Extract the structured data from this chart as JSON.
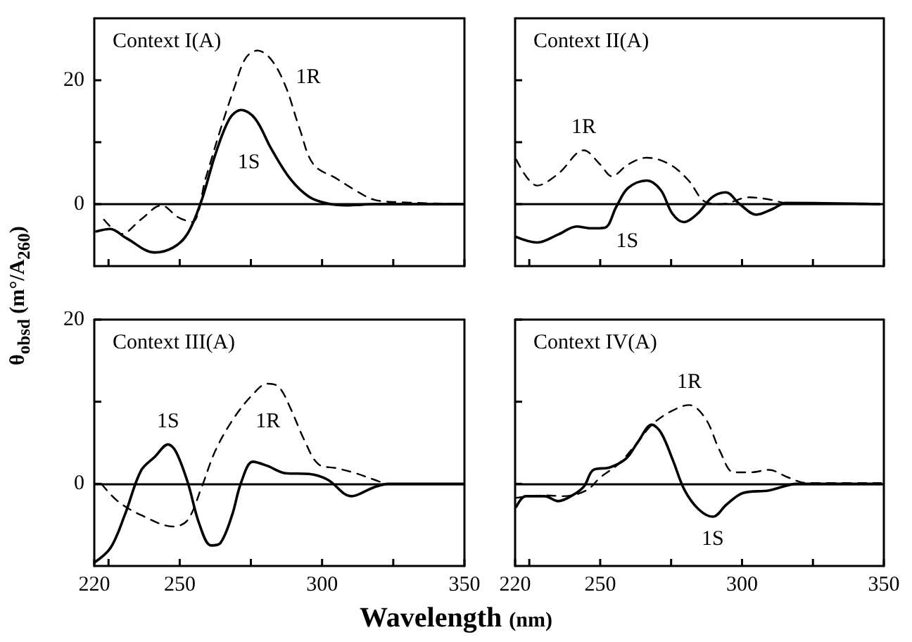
{
  "chart_data": [
    {
      "type": "line",
      "title": "Context I(A)",
      "ylabel": "θ$_{obsd}$ (m°/A$_{260}$)",
      "xlim": [
        220,
        350
      ],
      "ylim": [
        -10,
        30
      ],
      "xticks": [
        225,
        250,
        275,
        300,
        325,
        350
      ],
      "yticks": [
        0,
        {
          "value": 10,
          "label": null
        },
        20
      ],
      "tick_labels": "y",
      "grid": false,
      "legend": false,
      "series": [
        {
          "name": "1S",
          "color": "#000000",
          "line_style": "solid",
          "x": [
            220.7,
            225.6,
            231.3,
            241.2,
            247.7,
            252.7,
            257.6,
            262.5,
            267.5,
            271.6,
            276.5,
            282.2,
            288.8,
            295.4,
            301.9,
            308.5,
            318.4,
            349.6
          ],
          "values": [
            -4.4,
            -4,
            -5.5,
            -7.8,
            -7,
            -4.8,
            0.5,
            8,
            13.8,
            15.2,
            13.8,
            8.9,
            4.1,
            1.2,
            0.1,
            -0.2,
            0,
            0
          ]
        },
        {
          "name": "1R",
          "color": "#000000",
          "line_style": "dashed",
          "x": [
            223.4,
            229.7,
            236.3,
            243.6,
            249.4,
            254.3,
            259.2,
            264.2,
            269.1,
            273.2,
            277.3,
            282.2,
            287.2,
            292.1,
            297,
            305.2,
            311.8,
            318.4,
            328.2,
            349.6
          ],
          "values": [
            -2.5,
            -4.8,
            -2.5,
            -0.2,
            -2.1,
            -2.9,
            4.3,
            11.9,
            18.7,
            23.6,
            24.8,
            23.3,
            19,
            12.2,
            6.4,
            4.1,
            2.2,
            0.7,
            0.3,
            0
          ]
        }
      ],
      "ref_lines": [
        {
          "axis": "y",
          "value": 0,
          "color": "#000000"
        }
      ]
    },
    {
      "type": "line",
      "title": "Context II(A)",
      "xlim": [
        220,
        350
      ],
      "ylim": [
        -10,
        30
      ],
      "xticks": [
        225,
        250,
        275,
        300,
        325,
        350
      ],
      "yticks": [
        0,
        10,
        20
      ],
      "tick_labels": false,
      "grid": false,
      "legend": false,
      "series": [
        {
          "name": "1S",
          "color": "#000000",
          "line_style": "solid",
          "x": [
            220.4,
            227.8,
            235.2,
            241.7,
            246.7,
            251.6,
            255.7,
            259.8,
            266.4,
            271.3,
            275.4,
            279.5,
            284.4,
            289.4,
            294.3,
            299.2,
            305,
            310.7,
            315.6,
            348.5
          ],
          "values": [
            -5.3,
            -6.2,
            -4.9,
            -3.6,
            -3.9,
            -3.8,
            -0.4,
            2.6,
            3.8,
            2.3,
            -1.5,
            -2.9,
            -1.5,
            1.1,
            1.9,
            0,
            -1.7,
            -0.8,
            0.2,
            0
          ]
        },
        {
          "name": "1R",
          "color": "#000000",
          "line_style": "dashed",
          "x": [
            220.4,
            227.8,
            235.2,
            244.2,
            250,
            254.1,
            259.8,
            266.4,
            274.6,
            281.2,
            286.9,
            292.7,
            302.5,
            309.1,
            315.6,
            348.5
          ],
          "values": [
            7.2,
            3,
            4.9,
            8.7,
            6.4,
            4.5,
            6.4,
            7.5,
            6.4,
            3.8,
            0.4,
            0,
            1.1,
            0.8,
            0.2,
            0
          ]
        }
      ],
      "ref_lines": [
        {
          "axis": "y",
          "value": 0,
          "color": "#000000"
        }
      ]
    },
    {
      "type": "line",
      "title": "Context III(A)",
      "xlabel": "Wavelength (nm)",
      "xlim": [
        220,
        350
      ],
      "ylim": [
        -10,
        20
      ],
      "xticks": [
        220,
        {
          "value": 225,
          "label": null
        },
        250,
        {
          "value": 275,
          "label": null
        },
        300,
        {
          "value": 325,
          "label": null
        },
        350
      ],
      "yticks": [
        0,
        {
          "value": 10,
          "label": null
        },
        20
      ],
      "grid": false,
      "legend": false,
      "series": [
        {
          "name": "1S",
          "color": "#000000",
          "line_style": "solid",
          "x": [
            220,
            225.7,
            230.7,
            236.4,
            241.3,
            245.9,
            248.7,
            252.8,
            256.9,
            261,
            264.3,
            268.4,
            271.6,
            275.7,
            280.7,
            287.2,
            295.4,
            302,
            310.2,
            318.4,
            323.3,
            349.5
          ],
          "values": [
            -9.6,
            -7.8,
            -3.8,
            1.6,
            3.3,
            4.8,
            3.9,
            0.2,
            -4.9,
            -7.5,
            -7.2,
            -3.8,
            0.2,
            2.7,
            2.2,
            1.3,
            1.2,
            0.5,
            -1.5,
            -0.4,
            0,
            0
          ]
        },
        {
          "name": "1R",
          "color": "#000000",
          "line_style": "dashed",
          "x": [
            222.5,
            228.2,
            236.4,
            247.9,
            252.8,
            257.7,
            262.6,
            269.2,
            275.7,
            280.7,
            284.8,
            288.9,
            293.8,
            298.7,
            305.2,
            311.8,
            318.4,
            323.3,
            349.5
          ],
          "values": [
            0,
            -2.1,
            -3.8,
            -5.2,
            -4.4,
            -0.4,
            4.1,
            8.1,
            10.9,
            12.2,
            11.8,
            9.2,
            5.3,
            2.4,
            1.9,
            1.3,
            0.5,
            0,
            0
          ]
        }
      ],
      "ref_lines": [
        {
          "axis": "y",
          "value": 0,
          "color": "#000000"
        }
      ]
    },
    {
      "type": "line",
      "title": "Context IV(A)",
      "xlim": [
        220,
        350
      ],
      "ylim": [
        -10,
        20
      ],
      "xticks": [
        220,
        {
          "value": 225,
          "label": null
        },
        250,
        {
          "value": 275,
          "label": null
        },
        300,
        {
          "value": 325,
          "label": null
        },
        350
      ],
      "yticks": [
        0,
        10,
        20
      ],
      "tick_labels": "x",
      "grid": false,
      "legend": false,
      "series": [
        {
          "name": "1S",
          "color": "#000000",
          "line_style": "solid",
          "x": [
            220.4,
            223.7,
            230.3,
            235.2,
            240.2,
            244.3,
            247.6,
            253.4,
            259.2,
            263.3,
            268.2,
            271.5,
            275.7,
            279.8,
            284.7,
            289.7,
            294.6,
            300.4,
            309.5,
            319.4,
            349
          ],
          "values": [
            -2.8,
            -1.5,
            -1.5,
            -2.1,
            -1.4,
            -0.3,
            1.7,
            2,
            3.1,
            5.1,
            7.2,
            6.2,
            2.8,
            -0.8,
            -3.1,
            -4,
            -2.5,
            -1.1,
            -0.8,
            0,
            0
          ]
        },
        {
          "name": "1R",
          "color": "#000000",
          "line_style": "dashed",
          "x": [
            220.4,
            230.3,
            236.9,
            245.1,
            250.1,
            256.7,
            263.3,
            268.2,
            274.8,
            281.4,
            287.2,
            292.2,
            297.1,
            302.9,
            309.5,
            316.1,
            322.7,
            349.1
          ],
          "values": [
            -1.7,
            -1.4,
            -1.5,
            -0.8,
            0.8,
            2.5,
            5.1,
            7.2,
            8.8,
            9.6,
            7.9,
            4,
            1.4,
            1.4,
            1.7,
            0.8,
            0.1,
            0.1
          ]
        }
      ],
      "ref_lines": [
        {
          "axis": "y",
          "value": 0,
          "color": "#000000"
        }
      ]
    }
  ]
}
